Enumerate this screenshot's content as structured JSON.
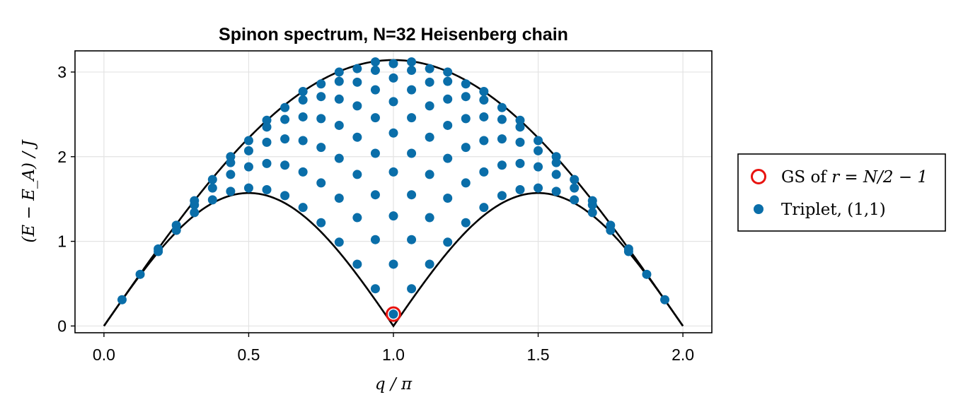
{
  "chart_data": {
    "type": "scatter",
    "title": "Spinon spectrum, N=32 Heisenberg chain",
    "xlabel": "q / π",
    "ylabel": "(E − E_A) / J",
    "xlim": [
      -0.1,
      2.1
    ],
    "ylim": [
      -0.08,
      3.25
    ],
    "xticks": [
      "0.0",
      "0.5",
      "1.0",
      "1.5",
      "2.0"
    ],
    "yticks": [
      "0",
      "1",
      "2",
      "3"
    ],
    "grid": true,
    "legend_position": "right",
    "curves": [
      {
        "name": "lower_bound",
        "formula": "(π/2)·|sin(π q)|"
      },
      {
        "name": "upper_bound",
        "formula": "π·|sin(π q / 2)|"
      }
    ],
    "series": [
      {
        "name": "GS of r = N/2 − 1",
        "marker": "open-circle",
        "color": "#e8130f",
        "points": [
          [
            1.0,
            0.14
          ]
        ]
      },
      {
        "name": "Triplet, (1,1)",
        "marker": "filled-circle",
        "color": "#0a6ea9",
        "points": [
          [
            0.0625,
            0.31
          ],
          [
            0.125,
            0.61
          ],
          [
            0.1875,
            0.88
          ],
          [
            0.1875,
            0.91
          ],
          [
            0.25,
            1.13
          ],
          [
            0.25,
            1.19
          ],
          [
            0.3125,
            1.34
          ],
          [
            0.3125,
            1.43
          ],
          [
            0.3125,
            1.48
          ],
          [
            0.375,
            1.49
          ],
          [
            0.375,
            1.63
          ],
          [
            0.375,
            1.73
          ],
          [
            0.4375,
            1.59
          ],
          [
            0.4375,
            1.79
          ],
          [
            0.4375,
            1.93
          ],
          [
            0.4375,
            2.0
          ],
          [
            0.5,
            1.63
          ],
          [
            0.5,
            1.88
          ],
          [
            0.5,
            2.07
          ],
          [
            0.5,
            2.19
          ],
          [
            0.5625,
            1.61
          ],
          [
            0.5625,
            1.92
          ],
          [
            0.5625,
            2.17
          ],
          [
            0.5625,
            2.35
          ],
          [
            0.5625,
            2.43
          ],
          [
            0.625,
            1.54
          ],
          [
            0.625,
            1.9
          ],
          [
            0.625,
            2.21
          ],
          [
            0.625,
            2.44
          ],
          [
            0.625,
            2.58
          ],
          [
            0.6875,
            1.4
          ],
          [
            0.6875,
            1.82
          ],
          [
            0.6875,
            2.19
          ],
          [
            0.6875,
            2.47
          ],
          [
            0.6875,
            2.67
          ],
          [
            0.6875,
            2.77
          ],
          [
            0.75,
            1.22
          ],
          [
            0.75,
            1.69
          ],
          [
            0.75,
            2.11
          ],
          [
            0.75,
            2.45
          ],
          [
            0.75,
            2.71
          ],
          [
            0.75,
            2.86
          ],
          [
            0.8125,
            0.99
          ],
          [
            0.8125,
            1.51
          ],
          [
            0.8125,
            1.98
          ],
          [
            0.8125,
            2.37
          ],
          [
            0.8125,
            2.68
          ],
          [
            0.8125,
            2.89
          ],
          [
            0.8125,
            3.0
          ],
          [
            0.875,
            0.73
          ],
          [
            0.875,
            1.28
          ],
          [
            0.875,
            1.79
          ],
          [
            0.875,
            2.23
          ],
          [
            0.875,
            2.6
          ],
          [
            0.875,
            2.88
          ],
          [
            0.875,
            3.04
          ],
          [
            0.9375,
            0.44
          ],
          [
            0.9375,
            1.02
          ],
          [
            0.9375,
            1.55
          ],
          [
            0.9375,
            2.04
          ],
          [
            0.9375,
            2.46
          ],
          [
            0.9375,
            2.79
          ],
          [
            0.9375,
            3.02
          ],
          [
            0.9375,
            3.12
          ],
          [
            1.0,
            0.14
          ],
          [
            1.0,
            0.73
          ],
          [
            1.0,
            1.3
          ],
          [
            1.0,
            1.82
          ],
          [
            1.0,
            2.28
          ],
          [
            1.0,
            2.65
          ],
          [
            1.0,
            2.93
          ],
          [
            1.0,
            3.1
          ],
          [
            1.0625,
            0.44
          ],
          [
            1.0625,
            1.02
          ],
          [
            1.0625,
            1.55
          ],
          [
            1.0625,
            2.04
          ],
          [
            1.0625,
            2.46
          ],
          [
            1.0625,
            2.79
          ],
          [
            1.0625,
            3.02
          ],
          [
            1.0625,
            3.12
          ],
          [
            1.125,
            0.73
          ],
          [
            1.125,
            1.28
          ],
          [
            1.125,
            1.79
          ],
          [
            1.125,
            2.23
          ],
          [
            1.125,
            2.6
          ],
          [
            1.125,
            2.88
          ],
          [
            1.125,
            3.04
          ],
          [
            1.1875,
            0.99
          ],
          [
            1.1875,
            1.51
          ],
          [
            1.1875,
            1.98
          ],
          [
            1.1875,
            2.37
          ],
          [
            1.1875,
            2.68
          ],
          [
            1.1875,
            2.89
          ],
          [
            1.1875,
            3.0
          ],
          [
            1.25,
            1.22
          ],
          [
            1.25,
            1.69
          ],
          [
            1.25,
            2.11
          ],
          [
            1.25,
            2.45
          ],
          [
            1.25,
            2.71
          ],
          [
            1.25,
            2.86
          ],
          [
            1.3125,
            1.4
          ],
          [
            1.3125,
            1.82
          ],
          [
            1.3125,
            2.19
          ],
          [
            1.3125,
            2.47
          ],
          [
            1.3125,
            2.67
          ],
          [
            1.3125,
            2.77
          ],
          [
            1.375,
            1.54
          ],
          [
            1.375,
            1.9
          ],
          [
            1.375,
            2.21
          ],
          [
            1.375,
            2.44
          ],
          [
            1.375,
            2.58
          ],
          [
            1.4375,
            1.61
          ],
          [
            1.4375,
            1.92
          ],
          [
            1.4375,
            2.17
          ],
          [
            1.4375,
            2.35
          ],
          [
            1.4375,
            2.43
          ],
          [
            1.5,
            1.63
          ],
          [
            1.5,
            1.88
          ],
          [
            1.5,
            2.07
          ],
          [
            1.5,
            2.19
          ],
          [
            1.5625,
            1.59
          ],
          [
            1.5625,
            1.79
          ],
          [
            1.5625,
            1.93
          ],
          [
            1.5625,
            2.0
          ],
          [
            1.625,
            1.49
          ],
          [
            1.625,
            1.63
          ],
          [
            1.625,
            1.73
          ],
          [
            1.6875,
            1.34
          ],
          [
            1.6875,
            1.43
          ],
          [
            1.6875,
            1.48
          ],
          [
            1.75,
            1.13
          ],
          [
            1.75,
            1.19
          ],
          [
            1.8125,
            0.88
          ],
          [
            1.8125,
            0.91
          ],
          [
            1.875,
            0.61
          ],
          [
            1.9375,
            0.31
          ]
        ]
      }
    ]
  },
  "legend": {
    "gs_label_text": "GS of ",
    "gs_label_math": "r = N/2 − 1",
    "triplet_label": "Triplet, (1,1)"
  },
  "colors": {
    "gs": "#e8130f",
    "triplet": "#0a6ea9",
    "curve": "#000000",
    "grid": "#e3e3e3"
  }
}
